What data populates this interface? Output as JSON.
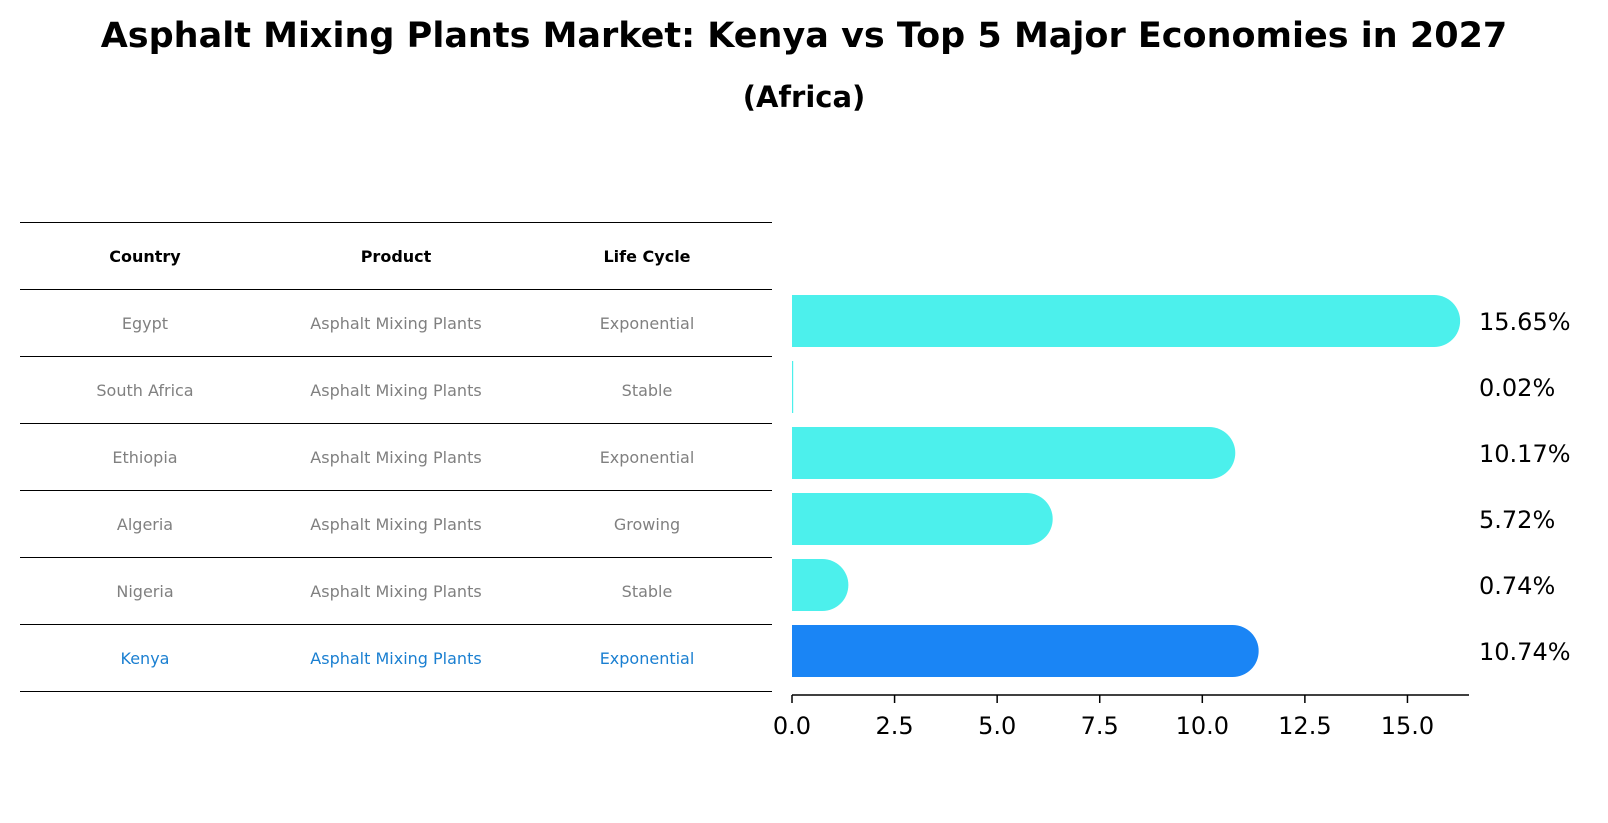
{
  "title": "Asphalt Mixing Plants Market: Kenya vs Top 5 Major Economies in 2027",
  "subtitle": "(Africa)",
  "table": {
    "headers": [
      "Country",
      "Product",
      "Life Cycle"
    ],
    "rows": [
      {
        "country": "Egypt",
        "product": "Asphalt Mixing Plants",
        "life_cycle": "Exponential"
      },
      {
        "country": "South Africa",
        "product": "Asphalt Mixing Plants",
        "life_cycle": "Stable"
      },
      {
        "country": "Ethiopia",
        "product": "Asphalt Mixing Plants",
        "life_cycle": "Exponential"
      },
      {
        "country": "Algeria",
        "product": "Asphalt Mixing Plants",
        "life_cycle": "Growing"
      },
      {
        "country": "Nigeria",
        "product": "Asphalt Mixing Plants",
        "life_cycle": "Stable"
      },
      {
        "country": "Kenya",
        "product": "Asphalt Mixing Plants",
        "life_cycle": "Exponential"
      }
    ]
  },
  "chart_data": {
    "type": "bar",
    "orientation": "horizontal",
    "categories": [
      "Egypt",
      "South Africa",
      "Ethiopia",
      "Algeria",
      "Nigeria",
      "Kenya"
    ],
    "values": [
      15.65,
      0.02,
      10.17,
      5.72,
      0.74,
      10.74
    ],
    "value_labels": [
      "15.65%",
      "0.02%",
      "10.17%",
      "5.72%",
      "0.74%",
      "10.74%"
    ],
    "highlight": "Kenya",
    "xlim": [
      0,
      16.5
    ],
    "xticks": [
      0.0,
      2.5,
      5.0,
      7.5,
      10.0,
      12.5,
      15.0
    ],
    "xtick_labels": [
      "0.0",
      "2.5",
      "5.0",
      "7.5",
      "10.0",
      "12.5",
      "15.0"
    ],
    "xlabel": "",
    "ylabel": "",
    "colors": {
      "default": "#4cf0ec",
      "highlight": "#1a85f5"
    }
  }
}
